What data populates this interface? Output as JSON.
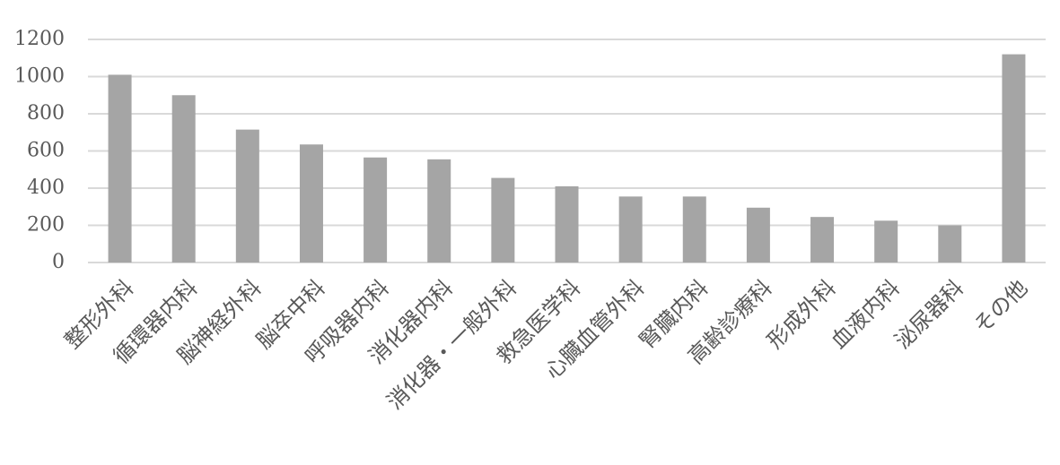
{
  "chart_data": {
    "type": "bar",
    "categories": [
      "整形外科",
      "循環器内科",
      "脳神経外科",
      "脳卒中科",
      "呼吸器内科",
      "消化器内科",
      "消化器・一般外科",
      "救急医学科",
      "心臓血管外科",
      "腎臓内科",
      "高齢診療科",
      "形成外科",
      "血液内科",
      "泌尿器科",
      "その他"
    ],
    "values": [
      1010,
      900,
      715,
      635,
      565,
      555,
      455,
      410,
      355,
      355,
      295,
      245,
      225,
      200,
      1120
    ],
    "color": "#a5a5a5",
    "ylim": [
      0,
      1200
    ],
    "yticks": [
      0,
      200,
      400,
      600,
      800,
      1000,
      1200
    ],
    "grid": true
  }
}
